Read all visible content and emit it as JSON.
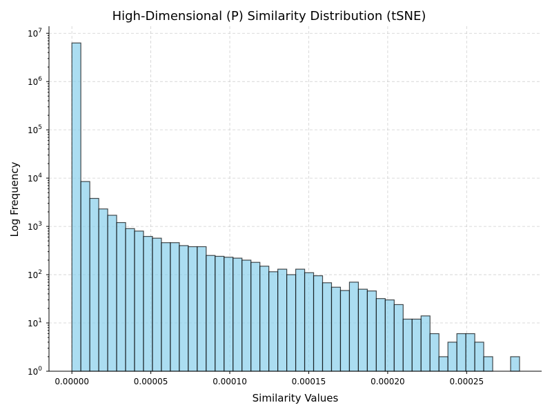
{
  "chart_data": {
    "type": "bar",
    "title": "High-Dimensional (P) Similarity Distribution (tSNE)",
    "xlabel": "Similarity Values",
    "ylabel": "Log Frequency",
    "yscale": "log",
    "xlim": [
      -1.45e-05,
      0.0002975
    ],
    "ylim": [
      1,
      14000000
    ],
    "grid": true,
    "bar_color": "#87ceeb",
    "edge_color": "#000000",
    "xticks": [
      {
        "value": 0.0,
        "label": "0.00000"
      },
      {
        "value": 5e-05,
        "label": "0.00005"
      },
      {
        "value": 0.0001,
        "label": "0.00010"
      },
      {
        "value": 0.00015,
        "label": "0.00015"
      },
      {
        "value": 0.0002,
        "label": "0.00020"
      },
      {
        "value": 0.00025,
        "label": "0.00025"
      }
    ],
    "yticks": [
      {
        "value": 1,
        "base": "10",
        "exp": "0"
      },
      {
        "value": 10,
        "base": "10",
        "exp": "1"
      },
      {
        "value": 100,
        "base": "10",
        "exp": "2"
      },
      {
        "value": 1000,
        "base": "10",
        "exp": "3"
      },
      {
        "value": 10000,
        "base": "10",
        "exp": "4"
      },
      {
        "value": 100000,
        "base": "10",
        "exp": "5"
      },
      {
        "value": 1000000,
        "base": "10",
        "exp": "6"
      },
      {
        "value": 10000000,
        "base": "10",
        "exp": "7"
      }
    ],
    "bin_start": 0.0,
    "bin_width": 5.67e-06,
    "values": [
      6300000,
      8500,
      3800,
      2300,
      1700,
      1200,
      900,
      800,
      620,
      570,
      460,
      460,
      400,
      380,
      380,
      250,
      240,
      230,
      220,
      200,
      180,
      150,
      115,
      130,
      100,
      130,
      110,
      95,
      68,
      55,
      47,
      70,
      50,
      46,
      32,
      30,
      24,
      12,
      12,
      14,
      6,
      2,
      4,
      6,
      6,
      4,
      2,
      1,
      1,
      2
    ]
  }
}
